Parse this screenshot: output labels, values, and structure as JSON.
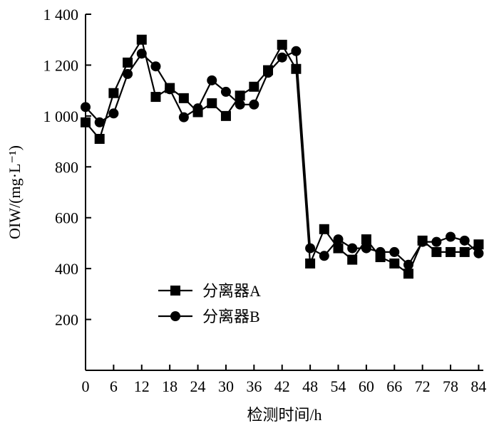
{
  "chart_data": {
    "type": "line",
    "xlabel": "检测时间/h",
    "ylabel": "OIW/(mg·L⁻¹)",
    "xlim": [
      0,
      85
    ],
    "ylim": [
      0,
      1400
    ],
    "xticks": [
      0,
      6,
      12,
      18,
      24,
      30,
      36,
      42,
      48,
      54,
      60,
      66,
      72,
      78,
      84
    ],
    "yticks": [
      {
        "value": 200,
        "label": "200"
      },
      {
        "value": 400,
        "label": "400"
      },
      {
        "value": 600,
        "label": "600"
      },
      {
        "value": 800,
        "label": "800"
      },
      {
        "value": 1000,
        "label": "1 000"
      },
      {
        "value": 1200,
        "label": "1 200"
      },
      {
        "value": 1400,
        "label": "1 400"
      }
    ],
    "grid": false,
    "legend_position": "bottom-left",
    "series": [
      {
        "name": "分离器A",
        "marker": "square",
        "color": "#000000",
        "x": [
          0,
          3,
          6,
          9,
          12,
          15,
          18,
          21,
          24,
          27,
          30,
          33,
          36,
          39,
          42,
          45,
          48,
          51,
          54,
          57,
          60,
          63,
          66,
          69,
          72,
          75,
          78,
          81,
          84
        ],
        "y": [
          975,
          910,
          1090,
          1210,
          1300,
          1075,
          1110,
          1070,
          1015,
          1050,
          1000,
          1080,
          1115,
          1180,
          1280,
          1185,
          420,
          555,
          480,
          435,
          515,
          445,
          420,
          380,
          510,
          465,
          465,
          465,
          495
        ]
      },
      {
        "name": "分离器B",
        "marker": "circle",
        "color": "#000000",
        "x": [
          0,
          3,
          6,
          9,
          12,
          15,
          18,
          21,
          24,
          27,
          30,
          33,
          36,
          39,
          42,
          45,
          48,
          51,
          54,
          57,
          60,
          63,
          66,
          69,
          72,
          75,
          78,
          81,
          84
        ],
        "y": [
          1035,
          975,
          1010,
          1165,
          1245,
          1195,
          1105,
          995,
          1030,
          1140,
          1095,
          1045,
          1045,
          1170,
          1230,
          1255,
          480,
          450,
          515,
          480,
          480,
          465,
          465,
          415,
          505,
          505,
          525,
          510,
          460
        ]
      }
    ]
  }
}
